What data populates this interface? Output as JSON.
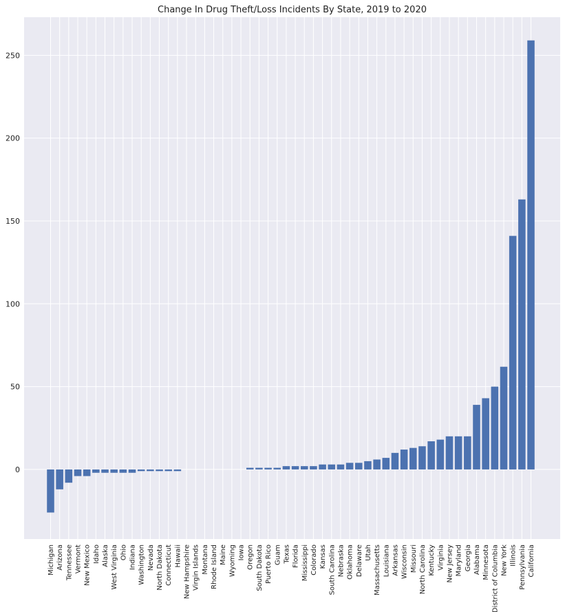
{
  "colors": {
    "plot_background": "#eaeaf2",
    "grid": "#ffffff",
    "bar": "#4c72b0",
    "text": "#222222"
  },
  "chart_data": {
    "type": "bar",
    "title": "Change In Drug Theft/Loss Incidents By State, 2019 to 2020",
    "xlabel": "",
    "ylabel": "",
    "ylim": [
      -42,
      273
    ],
    "yticks": [
      0,
      50,
      100,
      150,
      200,
      250
    ],
    "grid": true,
    "categories": [
      "Michigan",
      "Arizona",
      "Tennessee",
      "Vermont",
      "New Mexico",
      "Idaho",
      "Alaska",
      "West Virginia",
      "Ohio",
      "Indiana",
      "Washington",
      "Nevada",
      "North Dakota",
      "Connecticut",
      "Hawaii",
      "New Hampshire",
      "Virgin Islands",
      "Montana",
      "Rhode Island",
      "Maine",
      "Wyoming",
      "Iowa",
      "Oregon",
      "South Dakota",
      "Puerto Rico",
      "Guam",
      "Texas",
      "Florida",
      "Mississippi",
      "Colorado",
      "Kansas",
      "South Carolina",
      "Nebraska",
      "Oklahoma",
      "Delaware",
      "Utah",
      "Massachusetts",
      "Louisiana",
      "Arkansas",
      "Wisconsin",
      "Missouri",
      "North Carolina",
      "Kentucky",
      "Virginia",
      "New Jersey",
      "Maryland",
      "Georgia",
      "Alabama",
      "Minnesota",
      "District of Columbia",
      "New York",
      "Illinois",
      "Pennsylvania",
      "California"
    ],
    "values": [
      -26,
      -12,
      -8,
      -4,
      -4,
      -2,
      -2,
      -2,
      -2,
      -2,
      -1,
      -1,
      -1,
      -1,
      -1,
      0,
      0,
      0,
      0,
      0,
      0,
      0,
      1,
      1,
      1,
      1,
      2,
      2,
      2,
      2,
      3,
      3,
      3,
      4,
      4,
      5,
      6,
      7,
      10,
      12,
      13,
      14,
      17,
      18,
      20,
      20,
      20,
      39,
      43,
      50,
      62,
      141,
      163,
      259
    ]
  }
}
